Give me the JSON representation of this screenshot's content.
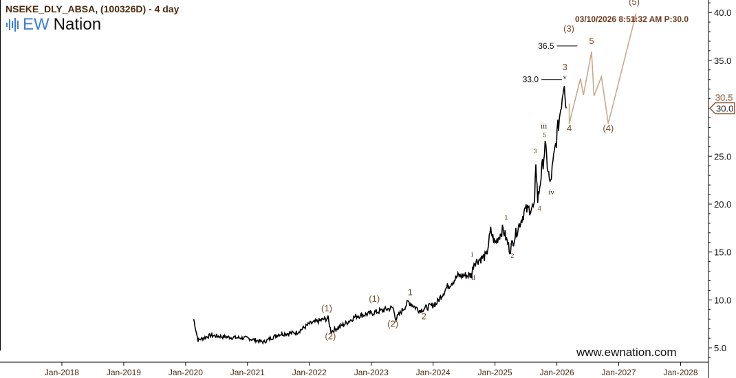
{
  "header": {
    "title": "NSEKE_DLY_ABSA, (100326D) - 4 day",
    "timestamp": "03/10/2026 8:51:32 AM  P:30.0"
  },
  "logo": {
    "ew": "EW",
    "nation": "Nation"
  },
  "watermark": "www.ewnation.com",
  "colors": {
    "price": "#000000",
    "projection": "#c8a88a",
    "label": "#7a4a28",
    "axis": "#000000"
  },
  "chart_data": {
    "type": "line",
    "xlim": [
      2017.0,
      2028.45
    ],
    "ylim": [
      3.5,
      41.3
    ],
    "x_ticks": [
      {
        "v": 2018,
        "label": "Jan-2018"
      },
      {
        "v": 2019,
        "label": "Jan-2019"
      },
      {
        "v": 2020,
        "label": "Jan-2020"
      },
      {
        "v": 2021,
        "label": "Jan-2021"
      },
      {
        "v": 2022,
        "label": "Jan-2022"
      },
      {
        "v": 2023,
        "label": "Jan-2023"
      },
      {
        "v": 2024,
        "label": "Jan-2024"
      },
      {
        "v": 2025,
        "label": "Jan-2025"
      },
      {
        "v": 2026,
        "label": "Jan-2026"
      },
      {
        "v": 2027,
        "label": "Jan-2027"
      },
      {
        "v": 2028,
        "label": "Jan-2028"
      }
    ],
    "y_ticks": [
      {
        "v": 5,
        "label": "5.0"
      },
      {
        "v": 10,
        "label": "10.0"
      },
      {
        "v": 15,
        "label": "15.0"
      },
      {
        "v": 20,
        "label": "20.0"
      },
      {
        "v": 25,
        "label": "25.0"
      },
      {
        "v": 30,
        "label": "30.0"
      },
      {
        "v": 35,
        "label": "35.0"
      },
      {
        "v": 40,
        "label": "40.0"
      }
    ],
    "price_series": [
      [
        2020.13,
        8.0
      ],
      [
        2020.2,
        5.8
      ],
      [
        2020.4,
        6.3
      ],
      [
        2020.7,
        6.1
      ],
      [
        2021.0,
        6.0
      ],
      [
        2021.26,
        5.6
      ],
      [
        2021.5,
        6.4
      ],
      [
        2021.8,
        6.6
      ],
      [
        2022.0,
        7.5
      ],
      [
        2022.3,
        8.1
      ],
      [
        2022.35,
        6.7
      ],
      [
        2022.6,
        7.6
      ],
      [
        2022.75,
        8.3
      ],
      [
        2023.0,
        8.6
      ],
      [
        2023.35,
        9.2
      ],
      [
        2023.4,
        8.0
      ],
      [
        2023.6,
        9.8
      ],
      [
        2023.78,
        8.9
      ],
      [
        2024.05,
        9.6
      ],
      [
        2024.22,
        11.3
      ],
      [
        2024.4,
        12.5
      ],
      [
        2024.62,
        12.6
      ],
      [
        2024.66,
        13.9
      ],
      [
        2024.86,
        14.6
      ],
      [
        2024.93,
        17.2
      ],
      [
        2025.0,
        15.9
      ],
      [
        2025.13,
        17.4
      ],
      [
        2025.24,
        15.2
      ],
      [
        2025.37,
        17.5
      ],
      [
        2025.48,
        19.3
      ],
      [
        2025.64,
        19.7
      ],
      [
        2025.66,
        24.6
      ],
      [
        2025.69,
        20.4
      ],
      [
        2025.81,
        26.0
      ],
      [
        2025.89,
        21.9
      ],
      [
        2025.98,
        26.2
      ],
      [
        2026.05,
        29.5
      ],
      [
        2026.12,
        33.1
      ],
      [
        2026.15,
        30.0
      ]
    ],
    "projection": [
      [
        2026.2,
        30.5
      ],
      [
        2026.2,
        28.4
      ],
      [
        2026.38,
        33.1
      ],
      [
        2026.43,
        31.4
      ],
      [
        2026.56,
        35.9
      ],
      [
        2026.6,
        31.3
      ],
      [
        2026.72,
        33.3
      ],
      [
        2026.83,
        28.4
      ],
      [
        2027.28,
        39.9
      ]
    ],
    "levels": [
      {
        "label": "36.5",
        "v": 36.5,
        "x0": 2026.0,
        "x1": 2026.33
      },
      {
        "label": "33.0",
        "v": 33.0,
        "x0": 2025.75,
        "x1": 2026.08
      }
    ],
    "last_price": {
      "label": "30.0",
      "hidden_label": "30.5",
      "v": 30.0
    },
    "wave_labels": [
      {
        "t": "(1)",
        "x": 2022.28,
        "y": 8.8,
        "s": 13
      },
      {
        "t": "(2)",
        "x": 2022.34,
        "y": 5.9,
        "s": 13
      },
      {
        "t": "(1)",
        "x": 2023.05,
        "y": 9.8,
        "s": 13
      },
      {
        "t": "(2)",
        "x": 2023.35,
        "y": 7.2,
        "s": 13
      },
      {
        "t": "1",
        "x": 2023.63,
        "y": 10.5,
        "s": 13
      },
      {
        "t": "2",
        "x": 2023.85,
        "y": 8.0,
        "s": 13
      },
      {
        "t": "i",
        "x": 2024.63,
        "y": 14.5,
        "s": 11,
        "dark": true
      },
      {
        "t": "ii",
        "x": 2024.65,
        "y": 12.1,
        "s": 11,
        "dark": true
      },
      {
        "t": "1",
        "x": 2025.18,
        "y": 18.4,
        "s": 9
      },
      {
        "t": "2",
        "x": 2025.28,
        "y": 14.4,
        "s": 9
      },
      {
        "t": "3",
        "x": 2025.65,
        "y": 25.3,
        "s": 9
      },
      {
        "t": "4",
        "x": 2025.72,
        "y": 19.3,
        "s": 9
      },
      {
        "t": "5",
        "x": 2025.8,
        "y": 27.0,
        "s": 9
      },
      {
        "t": "iii",
        "x": 2025.79,
        "y": 27.9,
        "s": 11,
        "dark": true
      },
      {
        "t": "iv",
        "x": 2025.91,
        "y": 21.0,
        "s": 11,
        "dark": true
      },
      {
        "t": "v",
        "x": 2026.13,
        "y": 33.0,
        "s": 10,
        "dark": true
      },
      {
        "t": "3",
        "x": 2026.13,
        "y": 34.0,
        "s": 13
      },
      {
        "t": "4",
        "x": 2026.2,
        "y": 27.6,
        "s": 13
      },
      {
        "t": "(3)",
        "x": 2026.56,
        "y": 38.0,
        "s": 13
      },
      {
        "t": "5",
        "x": 2026.56,
        "y": 36.7,
        "s": 13
      },
      {
        "t": "(4)",
        "x": 2026.83,
        "y": 27.6,
        "s": 13
      },
      {
        "t": "(5)",
        "x": 2027.25,
        "y": 40.8,
        "s": 13
      }
    ]
  }
}
